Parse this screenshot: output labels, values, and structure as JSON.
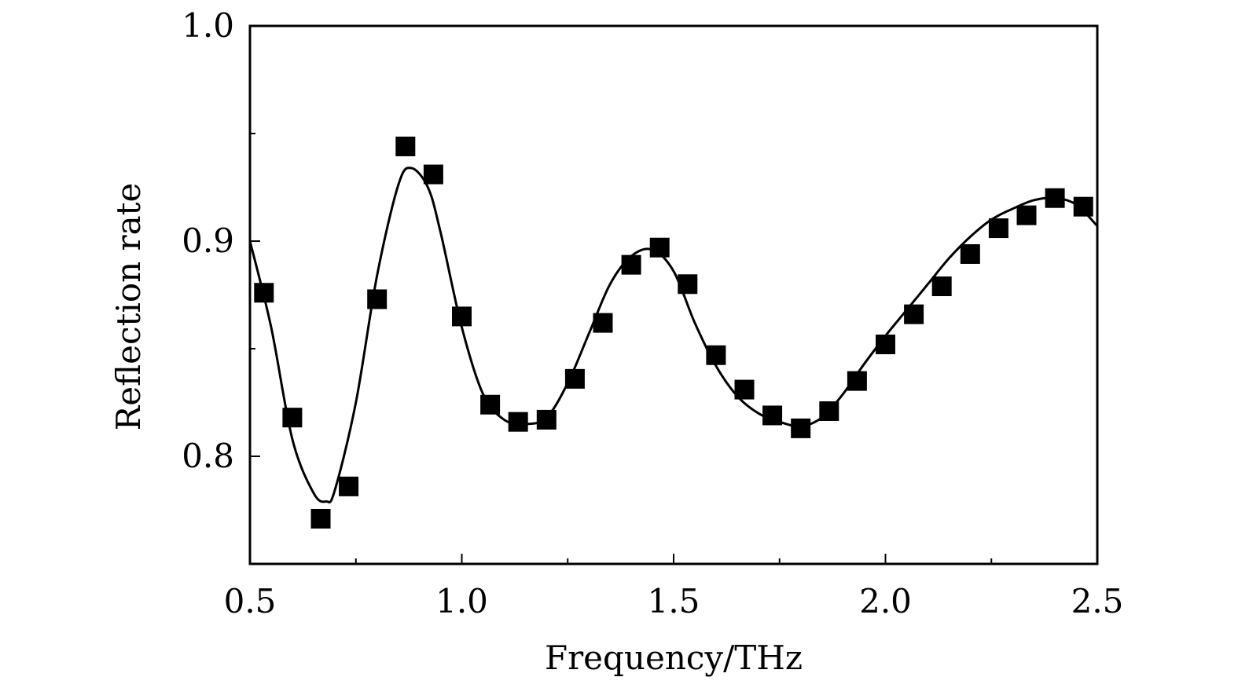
{
  "chart_data": {
    "type": "scatter",
    "title": "",
    "xlabel": "Frequency/THz",
    "ylabel": "Reflection rate",
    "xlim": [
      0.5,
      2.5
    ],
    "ylim": [
      0.75,
      1.0
    ],
    "x_ticks": [
      0.5,
      1.0,
      1.5,
      2.0,
      2.5
    ],
    "x_tick_labels": [
      "0.5",
      "1.0",
      "1.5",
      "2.0",
      "2.5"
    ],
    "x_minor_ticks": [
      0.75,
      1.25,
      1.75,
      2.25
    ],
    "y_ticks": [
      0.8,
      0.9,
      1.0
    ],
    "y_tick_labels": [
      "0.8",
      "0.9",
      "1.0"
    ],
    "y_minor_ticks": [
      0.85,
      0.95
    ],
    "grid": false,
    "legend": false,
    "series": [
      {
        "kind": "markers",
        "marker": "square",
        "color": "#000000",
        "x": [
          0.533,
          0.6,
          0.667,
          0.733,
          0.8,
          0.867,
          0.933,
          1.0,
          1.067,
          1.133,
          1.2,
          1.267,
          1.333,
          1.4,
          1.467,
          1.533,
          1.6,
          1.667,
          1.733,
          1.8,
          1.867,
          1.933,
          2.0,
          2.067,
          2.133,
          2.2,
          2.267,
          2.333,
          2.4,
          2.467
        ],
        "y": [
          0.876,
          0.818,
          0.771,
          0.786,
          0.873,
          0.944,
          0.931,
          0.865,
          0.824,
          0.816,
          0.817,
          0.836,
          0.862,
          0.889,
          0.897,
          0.88,
          0.847,
          0.831,
          0.819,
          0.813,
          0.821,
          0.835,
          0.852,
          0.866,
          0.879,
          0.894,
          0.906,
          0.912,
          0.92,
          0.916
        ]
      },
      {
        "kind": "line",
        "color": "#000000",
        "x": [
          0.5,
          0.55,
          0.6,
          0.65,
          0.68,
          0.7,
          0.75,
          0.8,
          0.85,
          0.88,
          0.92,
          0.95,
          1.0,
          1.05,
          1.1,
          1.15,
          1.2,
          1.25,
          1.3,
          1.35,
          1.4,
          1.45,
          1.5,
          1.55,
          1.6,
          1.65,
          1.7,
          1.75,
          1.8,
          1.85,
          1.9,
          1.95,
          2.0,
          2.05,
          2.1,
          2.15,
          2.2,
          2.25,
          2.3,
          2.35,
          2.4,
          2.45,
          2.5
        ],
        "y": [
          0.9,
          0.86,
          0.808,
          0.783,
          0.779,
          0.784,
          0.825,
          0.884,
          0.926,
          0.934,
          0.925,
          0.904,
          0.86,
          0.829,
          0.817,
          0.815,
          0.818,
          0.834,
          0.857,
          0.88,
          0.893,
          0.896,
          0.886,
          0.862,
          0.842,
          0.828,
          0.82,
          0.816,
          0.814,
          0.818,
          0.829,
          0.843,
          0.856,
          0.868,
          0.88,
          0.892,
          0.902,
          0.91,
          0.915,
          0.919,
          0.92,
          0.917,
          0.907
        ]
      }
    ]
  }
}
